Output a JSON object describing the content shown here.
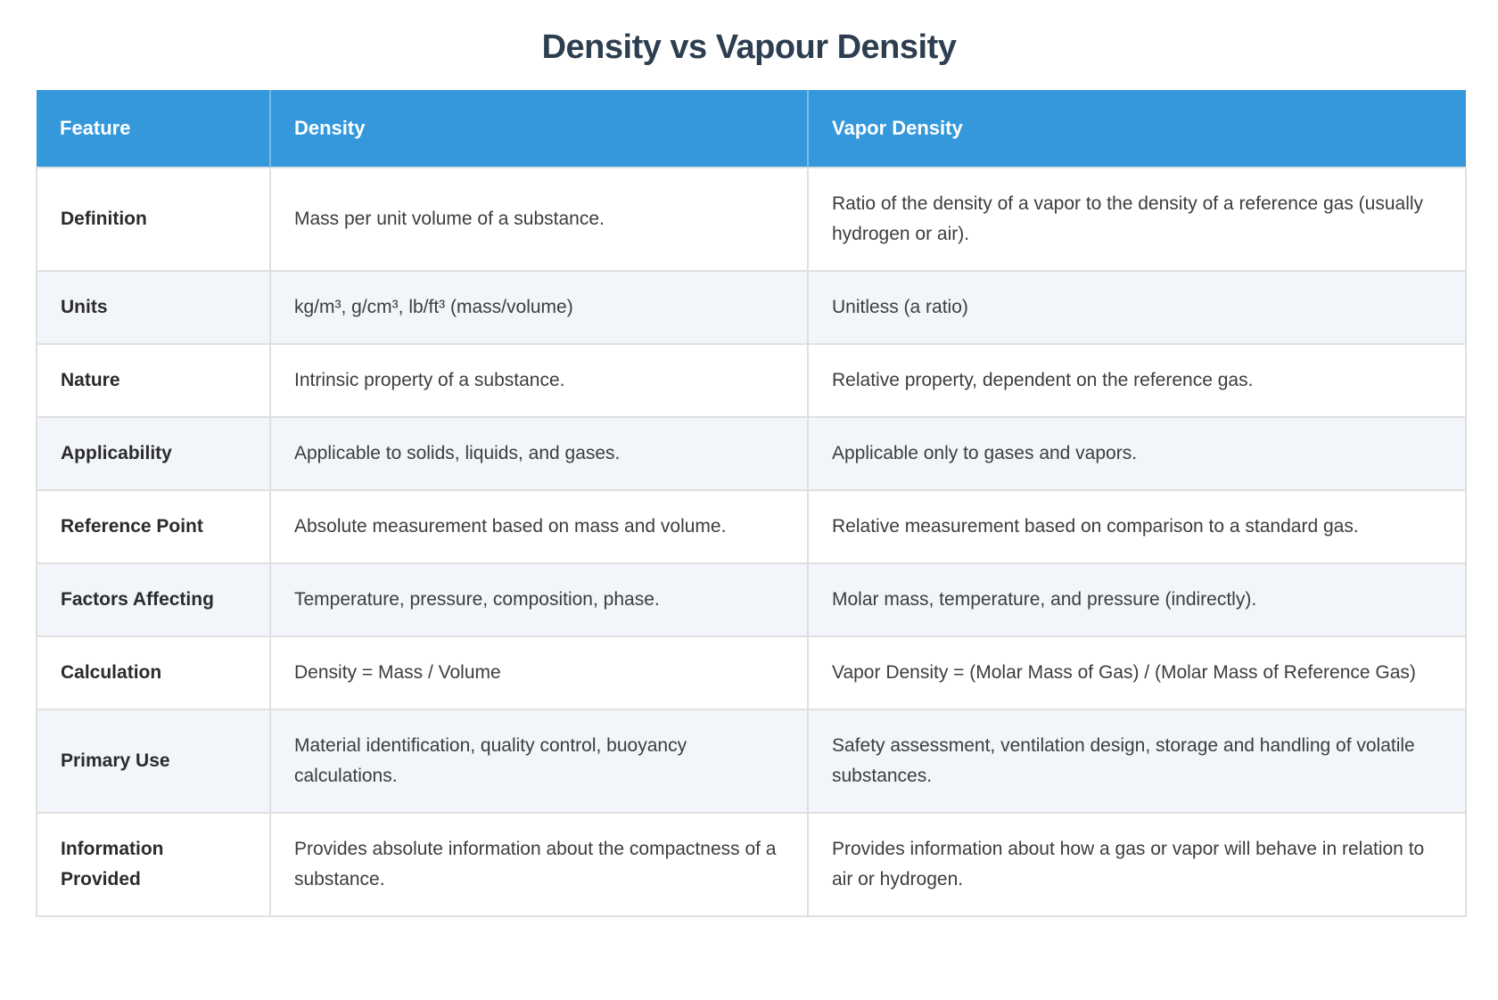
{
  "page": {
    "title": "Density vs Vapour Density"
  },
  "colors": {
    "header_bg": "#3498db",
    "header_text": "#ffffff",
    "title_text": "#2c3e50",
    "alt_row_bg": "#f2f5f9",
    "border": "#e0e0e0"
  },
  "table": {
    "headers": [
      "Feature",
      "Density",
      "Vapor Density"
    ],
    "rows": [
      {
        "feature": "Definition",
        "density": "Mass per unit volume of a substance.",
        "vapor_density": "Ratio of the density of a vapor to the density of a reference gas (usually hydrogen or air)."
      },
      {
        "feature": "Units",
        "density": "kg/m³, g/cm³, lb/ft³ (mass/volume)",
        "vapor_density": "Unitless (a ratio)"
      },
      {
        "feature": "Nature",
        "density": "Intrinsic property of a substance.",
        "vapor_density": "Relative property, dependent on the reference gas."
      },
      {
        "feature": "Applicability",
        "density": "Applicable to solids, liquids, and gases.",
        "vapor_density": "Applicable only to gases and vapors."
      },
      {
        "feature": "Reference Point",
        "density": "Absolute measurement based on mass and volume.",
        "vapor_density": "Relative measurement based on comparison to a standard gas."
      },
      {
        "feature": "Factors Affecting",
        "density": "Temperature, pressure, composition, phase.",
        "vapor_density": "Molar mass, temperature, and pressure (indirectly)."
      },
      {
        "feature": "Calculation",
        "density": "Density = Mass / Volume",
        "vapor_density": "Vapor Density = (Molar Mass of Gas) / (Molar Mass of Reference Gas)"
      },
      {
        "feature": "Primary Use",
        "density": "Material identification, quality control, buoyancy calculations.",
        "vapor_density": "Safety assessment, ventilation design, storage and handling of volatile substances."
      },
      {
        "feature": "Information Provided",
        "density": "Provides absolute information about the compactness of a substance.",
        "vapor_density": "Provides information about how a gas or vapor will behave in relation to air or hydrogen."
      }
    ]
  }
}
